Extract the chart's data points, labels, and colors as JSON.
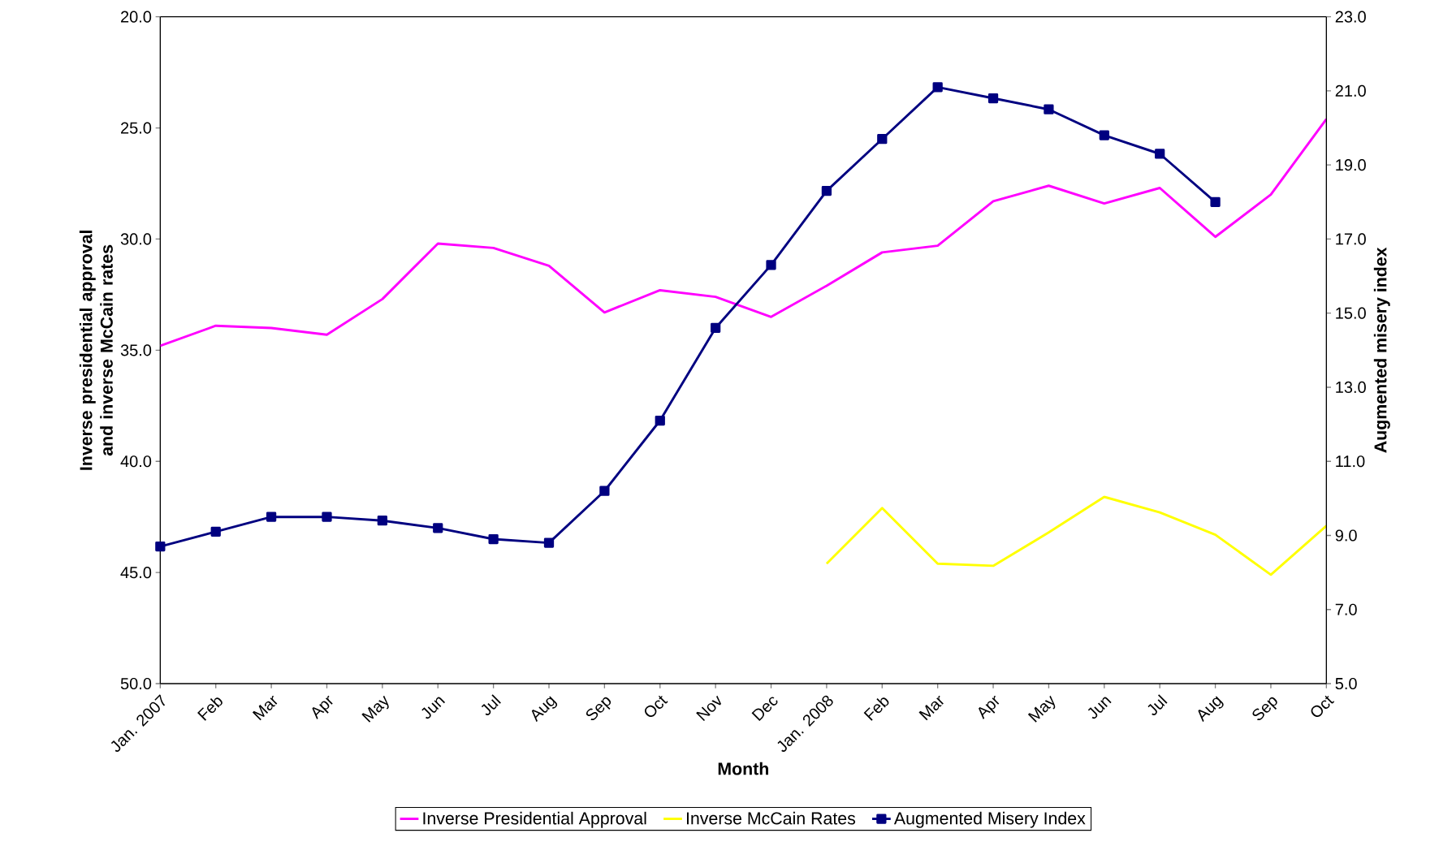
{
  "chart_data": {
    "type": "line",
    "xlabel": "Month",
    "ylabel": "Inverse presidential approval and inverse McCain rates",
    "y2label": "Augmented misery index",
    "categories": [
      "Jan. 2007",
      "Feb",
      "Mar",
      "Apr",
      "May",
      "Jun",
      "Jul",
      "Aug",
      "Sep",
      "Oct",
      "Nov",
      "Dec",
      "Jan. 2008",
      "Feb",
      "Mar",
      "Apr",
      "May",
      "Jun",
      "Jul",
      "Aug",
      "Sep",
      "Oct"
    ],
    "series": [
      {
        "name": "Inverse Presidential Approval",
        "color": "#ff00ff",
        "marker": "none",
        "values": [
          34.8,
          33.9,
          34.0,
          34.3,
          32.7,
          30.2,
          30.4,
          31.2,
          33.3,
          32.3,
          32.6,
          33.5,
          32.1,
          30.6,
          30.3,
          28.3,
          27.6,
          28.4,
          27.7,
          29.9,
          28.0,
          24.6
        ]
      },
      {
        "name": "Inverse McCain Rates",
        "color": "#ffff00",
        "marker": "none",
        "values": [
          null,
          null,
          null,
          null,
          null,
          null,
          null,
          null,
          null,
          null,
          null,
          null,
          44.6,
          42.1,
          44.6,
          44.7,
          43.2,
          41.6,
          42.3,
          43.3,
          45.1,
          42.9
        ]
      },
      {
        "name": "Augmented Misery Index",
        "color": "#000080",
        "marker": "square",
        "axis": "y2",
        "values": [
          8.7,
          9.1,
          9.5,
          9.5,
          9.4,
          9.2,
          8.9,
          8.8,
          10.2,
          12.1,
          14.6,
          16.3,
          18.3,
          19.7,
          21.1,
          20.8,
          20.5,
          19.8,
          19.3,
          18.0,
          null,
          null
        ]
      }
    ],
    "ylim": [
      50,
      20
    ],
    "yticks": [
      {
        "value": 20,
        "label": "20.0"
      },
      {
        "value": 25,
        "label": "25.0"
      },
      {
        "value": 30,
        "label": "30.0"
      },
      {
        "value": 35,
        "label": "35.0"
      },
      {
        "value": 40,
        "label": "40.0"
      },
      {
        "value": 45,
        "label": "45.0"
      },
      {
        "value": 50,
        "label": "50.0"
      }
    ],
    "y2lim": [
      5,
      23
    ],
    "y2ticks": [
      {
        "value": 5,
        "label": "5.0"
      },
      {
        "value": 7,
        "label": "7.0"
      },
      {
        "value": 9,
        "label": "9.0"
      },
      {
        "value": 11,
        "label": "11.0"
      },
      {
        "value": 13,
        "label": "13.0"
      },
      {
        "value": 15,
        "label": "15.0"
      },
      {
        "value": 17,
        "label": "17.0"
      },
      {
        "value": 19,
        "label": "19.0"
      },
      {
        "value": 21,
        "label": "21.0"
      },
      {
        "value": 23,
        "label": "23.0"
      }
    ],
    "grid": false,
    "legend": "bottom",
    "line_style": "solid"
  }
}
